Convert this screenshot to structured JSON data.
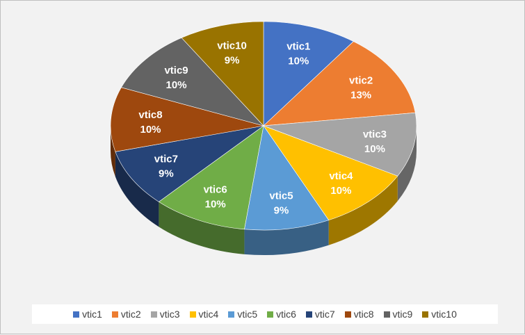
{
  "chart_data": {
    "type": "pie",
    "style": "3d-exploded-none",
    "categories": [
      "vtic1",
      "vtic2",
      "vtic3",
      "vtic4",
      "vtic5",
      "vtic6",
      "vtic7",
      "vtic8",
      "vtic9",
      "vtic10"
    ],
    "values": [
      10,
      13,
      10,
      10,
      9,
      10,
      9,
      10,
      10,
      9
    ],
    "data_labels": [
      "10%",
      "13%",
      "10%",
      "10%",
      "9%",
      "10%",
      "9%",
      "10%",
      "10%",
      "9%"
    ],
    "colors": [
      "#4472c4",
      "#ed7d31",
      "#a5a5a5",
      "#ffc000",
      "#5b9bd5",
      "#70ad47",
      "#264478",
      "#9e480e",
      "#636363",
      "#997300"
    ],
    "legend_position": "bottom",
    "title": ""
  }
}
